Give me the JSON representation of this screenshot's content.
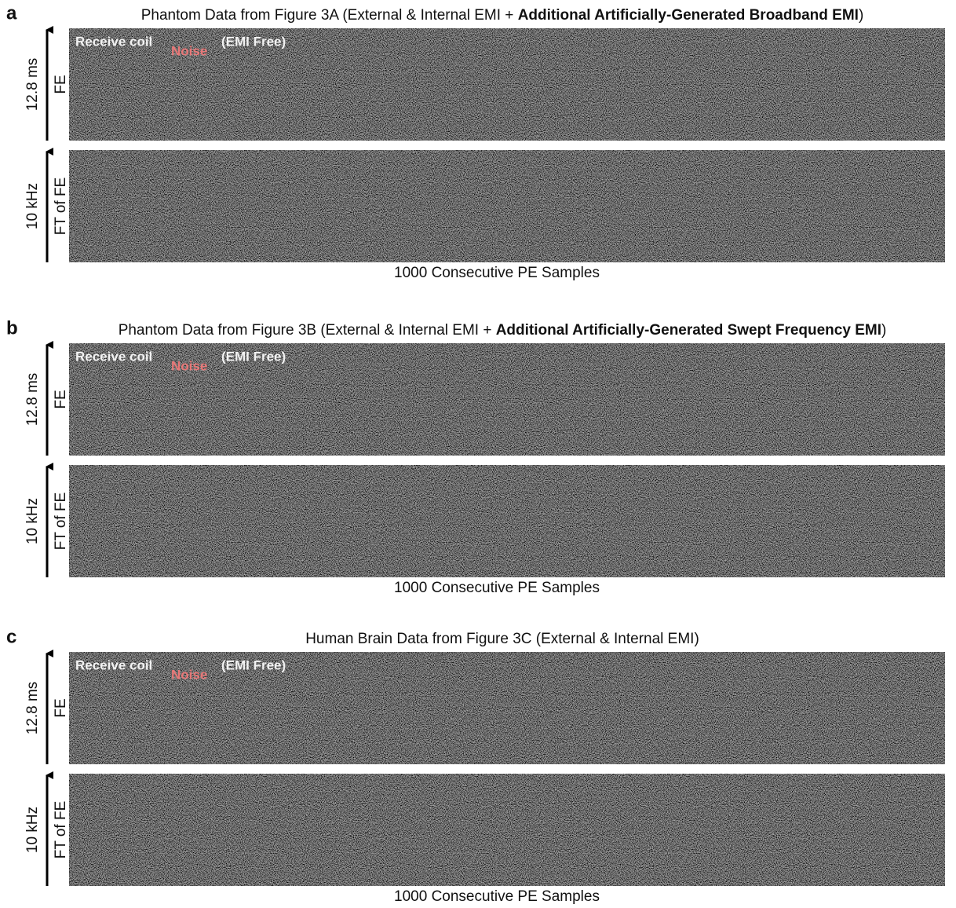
{
  "panels": [
    {
      "letter": "a",
      "title": {
        "prefix": "Phantom Data from Figure 3A  (External & Internal EMI + ",
        "bold": "Additional Artificially-Generated Broadband EMI",
        "suffix": ")"
      },
      "overlay": {
        "text": "Receive coil",
        "sub": "Noise",
        "note": "(EMI Free)"
      },
      "rows": [
        {
          "axis": "12.8 ms",
          "label": "FE"
        },
        {
          "axis": "10 kHz",
          "label": "FT of FE"
        }
      ],
      "xlabel": "1000 Consecutive PE Samples"
    },
    {
      "letter": "b",
      "title": {
        "prefix": "Phantom Data from Figure 3B (External & Internal EMI + ",
        "bold": "Additional Artificially-Generated Swept Frequency EMI",
        "suffix": ")"
      },
      "overlay": {
        "text": "Receive coil",
        "sub": "Noise",
        "note": "(EMI Free)"
      },
      "rows": [
        {
          "axis": "12.8 ms",
          "label": "FE"
        },
        {
          "axis": "10 kHz",
          "label": "FT of FE"
        }
      ],
      "xlabel": "1000 Consecutive PE Samples"
    },
    {
      "letter": "c",
      "title": {
        "prefix": "Human Brain Data from Figure 3C (External & Internal EMI)"
      },
      "overlay": {
        "text": "Receive coil",
        "sub": "Noise",
        "note": "(EMI Free)"
      },
      "rows": [
        {
          "axis": "12.8 ms",
          "label": "FE"
        },
        {
          "axis": "10 kHz",
          "label": "FT of FE"
        }
      ],
      "xlabel": "1000 Consecutive PE Samples"
    }
  ]
}
